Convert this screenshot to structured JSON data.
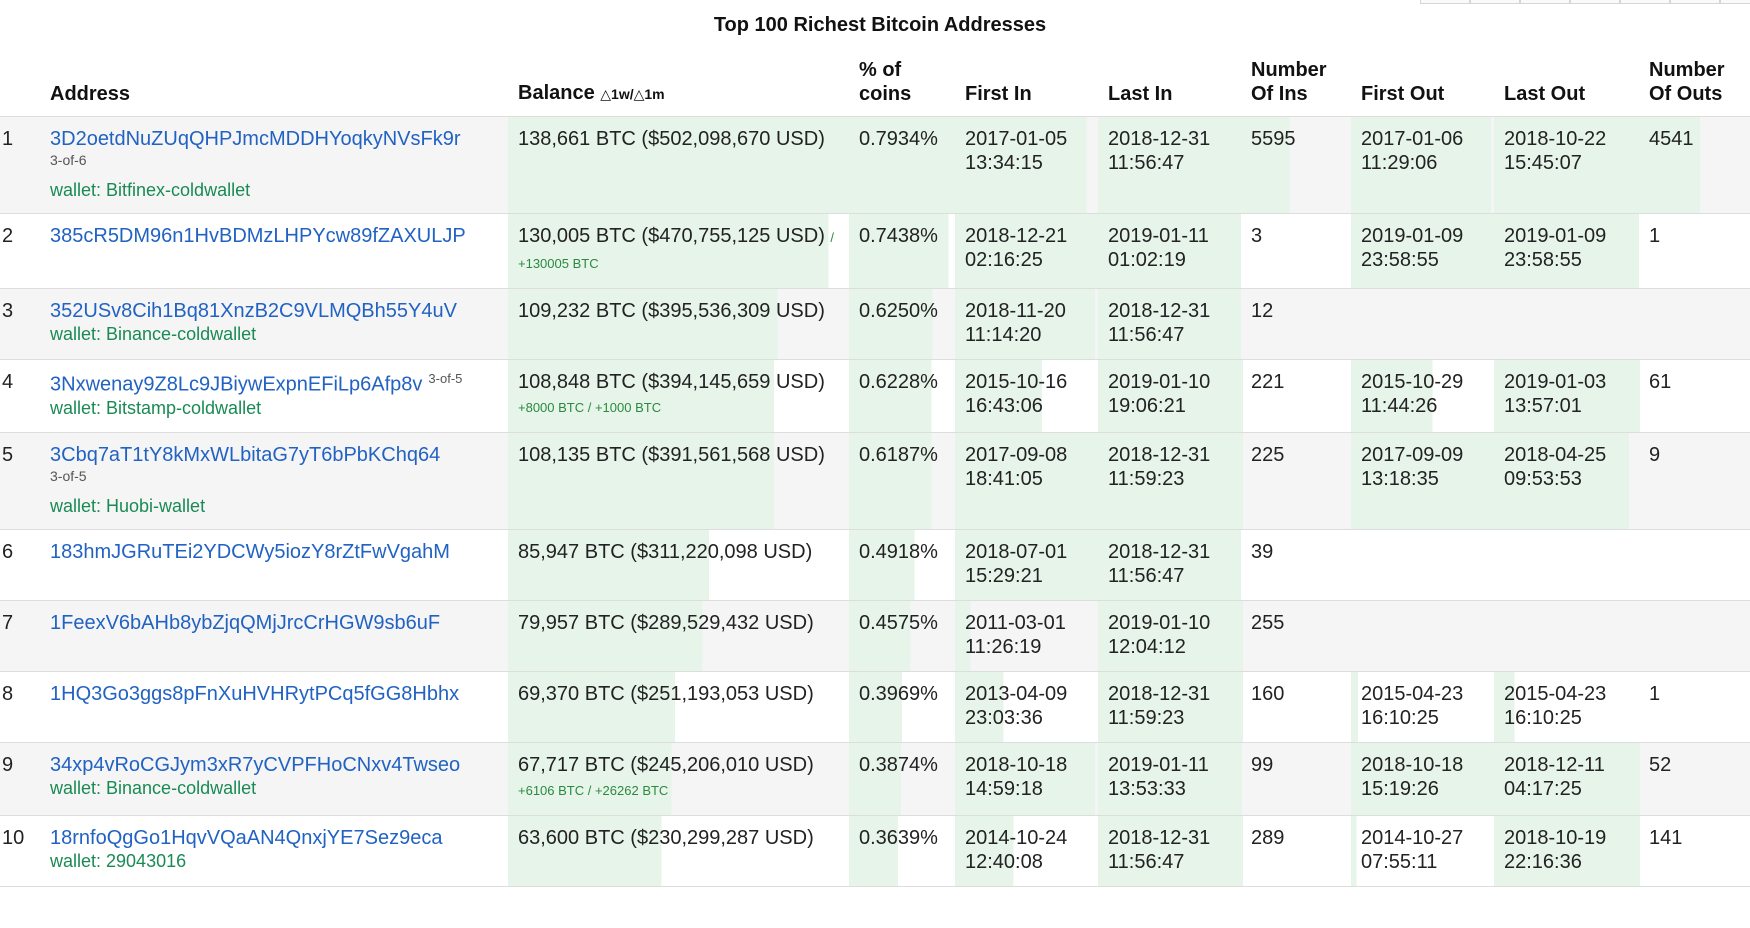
{
  "title": "Top 100 Richest Bitcoin Addresses",
  "columns": {
    "address": "Address",
    "balance": "Balance",
    "balance_delta": "△1w/△1m",
    "pct": [
      "% of",
      "coins"
    ],
    "first_in": "First In",
    "last_in": "Last In",
    "num_ins": [
      "Number",
      "Of Ins"
    ],
    "first_out": "First Out",
    "last_out": "Last Out",
    "num_outs": [
      "Number",
      "Of Outs"
    ]
  },
  "colors": {
    "link": "#2162c3",
    "wallet": "#1a8a55",
    "delta": "#2a8a3d",
    "bar": "#e7f4ea"
  },
  "rows": [
    {
      "rank": "1",
      "address": "3D2oetdNuZUqQHPJmcMDDHYoqkyNVsFk9r",
      "multisig": "3-of-6",
      "wallet": "wallet: Bitfinex-coldwallet",
      "balance": "138,661 BTC ($502,098,670 USD)",
      "delta": "",
      "pct": "0.7934%",
      "first_in": [
        "2017-01-05",
        "13:34:15"
      ],
      "last_in": [
        "2018-12-31",
        "11:56:47"
      ],
      "ins": "5595",
      "first_out": [
        "2017-01-06",
        "11:29:06"
      ],
      "last_out": [
        "2018-10-22",
        "15:45:07"
      ],
      "outs": "4541",
      "bars": {
        "balance": 100,
        "pct": 100,
        "first_in": 92,
        "last_in": 100,
        "ins": 44,
        "first_out": 98,
        "last_out": 100,
        "outs": 55
      }
    },
    {
      "rank": "2",
      "address": "385cR5DM96n1HvBDMzLHPYcw89fZAXULJP",
      "multisig": "",
      "wallet": "",
      "balance": "130,005 BTC ($470,755,125 USD)",
      "delta": "/ +130005 BTC",
      "pct": "0.7438%",
      "first_in": [
        "2018-12-21",
        "02:16:25"
      ],
      "last_in": [
        "2019-01-11",
        "01:02:19"
      ],
      "ins": "3",
      "first_out": [
        "2019-01-09",
        "23:58:55"
      ],
      "last_out": [
        "2019-01-09",
        "23:58:55"
      ],
      "outs": "1",
      "bars": {
        "balance": 94,
        "pct": 94,
        "first_in": 100,
        "last_in": 100,
        "ins": 0,
        "first_out": 100,
        "last_out": 100,
        "outs": 0
      }
    },
    {
      "rank": "3",
      "address": "352USv8Cih1Bq81XnzB2C9VLMQBh55Y4uV",
      "multisig": "",
      "wallet": "wallet: Binance-coldwallet",
      "balance": "109,232 BTC ($395,536,309 USD)",
      "delta": "",
      "pct": "0.6250%",
      "first_in": [
        "2018-11-20",
        "11:14:20"
      ],
      "last_in": [
        "2018-12-31",
        "11:56:47"
      ],
      "ins": "12",
      "first_out": [
        "",
        ""
      ],
      "last_out": [
        "",
        ""
      ],
      "outs": "",
      "bars": {
        "balance": 79,
        "pct": 79,
        "first_in": 98,
        "last_in": 100,
        "ins": 0,
        "first_out": 0,
        "last_out": 0,
        "outs": 0
      }
    },
    {
      "rank": "4",
      "address": "3Nxwenay9Z8Lc9JBiywExpnEFiLp6Afp8v",
      "multisig": "3-of-5",
      "wallet": "wallet: Bitstamp-coldwallet",
      "balance": "108,848 BTC ($394,145,659 USD)",
      "delta": "+8000 BTC / +1000 BTC",
      "pct": "0.6228%",
      "first_in": [
        "2015-10-16",
        "16:43:06"
      ],
      "last_in": [
        "2019-01-10",
        "19:06:21"
      ],
      "ins": "221",
      "first_out": [
        "2015-10-29",
        "11:44:26"
      ],
      "last_out": [
        "2019-01-03",
        "13:57:01"
      ],
      "outs": "61",
      "bars": {
        "balance": 78,
        "pct": 78,
        "first_in": 61,
        "last_in": 100,
        "ins": 2,
        "first_out": 57,
        "last_out": 100,
        "outs": 1
      }
    },
    {
      "rank": "5",
      "address": "3Cbq7aT1tY8kMxWLbitaG7yT6bPbKChq64",
      "multisig": "3-of-5",
      "wallet": "wallet: Huobi-wallet",
      "balance": "108,135 BTC ($391,561,568 USD)",
      "delta": "",
      "pct": "0.6187%",
      "first_in": [
        "2017-09-08",
        "18:41:05"
      ],
      "last_in": [
        "2018-12-31",
        "11:59:23"
      ],
      "ins": "225",
      "first_out": [
        "2017-09-09",
        "13:18:35"
      ],
      "last_out": [
        "2018-04-25",
        "09:53:53"
      ],
      "outs": "9",
      "bars": {
        "balance": 78,
        "pct": 78,
        "first_in": 100,
        "last_in": 100,
        "ins": 2,
        "first_out": 100,
        "last_out": 93,
        "outs": 0
      }
    },
    {
      "rank": "6",
      "address": "183hmJGRuTEi2YDCWy5iozY8rZtFwVgahM",
      "multisig": "",
      "wallet": "",
      "balance": "85,947 BTC ($311,220,098 USD)",
      "delta": "",
      "pct": "0.4918%",
      "first_in": [
        "2018-07-01",
        "15:29:21"
      ],
      "last_in": [
        "2018-12-31",
        "11:56:47"
      ],
      "ins": "39",
      "first_out": [
        "",
        ""
      ],
      "last_out": [
        "",
        ""
      ],
      "outs": "",
      "bars": {
        "balance": 59,
        "pct": 62,
        "first_in": 100,
        "last_in": 100,
        "ins": 0,
        "first_out": 0,
        "last_out": 0,
        "outs": 0
      }
    },
    {
      "rank": "7",
      "address": "1FeexV6bAHb8ybZjqQMjJrcCrHGW9sb6uF",
      "multisig": "",
      "wallet": "",
      "balance": "79,957 BTC ($289,529,432 USD)",
      "delta": "",
      "pct": "0.4575%",
      "first_in": [
        "2011-03-01",
        "11:26:19"
      ],
      "last_in": [
        "2019-01-10",
        "12:04:12"
      ],
      "ins": "255",
      "first_out": [
        "",
        ""
      ],
      "last_out": [
        "",
        ""
      ],
      "outs": "",
      "bars": {
        "balance": 57,
        "pct": 58,
        "first_in": 11,
        "last_in": 100,
        "ins": 2,
        "first_out": 0,
        "last_out": 0,
        "outs": 0
      }
    },
    {
      "rank": "8",
      "address": "1HQ3Go3ggs8pFnXuHVHRytPCq5fGG8Hbhx",
      "multisig": "",
      "wallet": "",
      "balance": "69,370 BTC ($251,193,053 USD)",
      "delta": "",
      "pct": "0.3969%",
      "first_in": [
        "2013-04-09",
        "23:03:36"
      ],
      "last_in": [
        "2018-12-31",
        "11:59:23"
      ],
      "ins": "160",
      "first_out": [
        "2015-04-23",
        "16:10:25"
      ],
      "last_out": [
        "2015-04-23",
        "16:10:25"
      ],
      "outs": "1",
      "bars": {
        "balance": 49,
        "pct": 50,
        "first_in": 34,
        "last_in": 100,
        "ins": 2,
        "first_out": 5,
        "last_out": 14,
        "outs": 0
      }
    },
    {
      "rank": "9",
      "address": "34xp4vRoCGJym3xR7yCVPFHoCNxv4Twseo",
      "multisig": "",
      "wallet": "wallet: Binance-coldwallet",
      "balance": "67,717 BTC ($245,206,010 USD)",
      "delta": "+6106 BTC / +26262 BTC",
      "pct": "0.3874%",
      "first_in": [
        "2018-10-18",
        "14:59:18"
      ],
      "last_in": [
        "2019-01-11",
        "13:53:33"
      ],
      "ins": "99",
      "first_out": [
        "2018-10-18",
        "15:19:26"
      ],
      "last_out": [
        "2018-12-11",
        "04:17:25"
      ],
      "outs": "52",
      "bars": {
        "balance": 48,
        "pct": 49,
        "first_in": 98,
        "last_in": 100,
        "ins": 1,
        "first_out": 100,
        "last_out": 100,
        "outs": 1
      }
    },
    {
      "rank": "10",
      "address": "18rnfoQgGo1HqvVQaAN4QnxjYE7Sez9eca",
      "multisig": "",
      "wallet": "wallet: 29043016",
      "balance": "63,600 BTC ($230,299,287 USD)",
      "delta": "",
      "pct": "0.3639%",
      "first_in": [
        "2014-10-24",
        "12:40:08"
      ],
      "last_in": [
        "2018-12-31",
        "11:56:47"
      ],
      "ins": "289",
      "first_out": [
        "2014-10-27",
        "07:55:11"
      ],
      "last_out": [
        "2018-10-19",
        "22:16:36"
      ],
      "outs": "141",
      "bars": {
        "balance": 45,
        "pct": 46,
        "first_in": 41,
        "last_in": 100,
        "ins": 2,
        "first_out": 4,
        "last_out": 100,
        "outs": 1
      }
    }
  ]
}
